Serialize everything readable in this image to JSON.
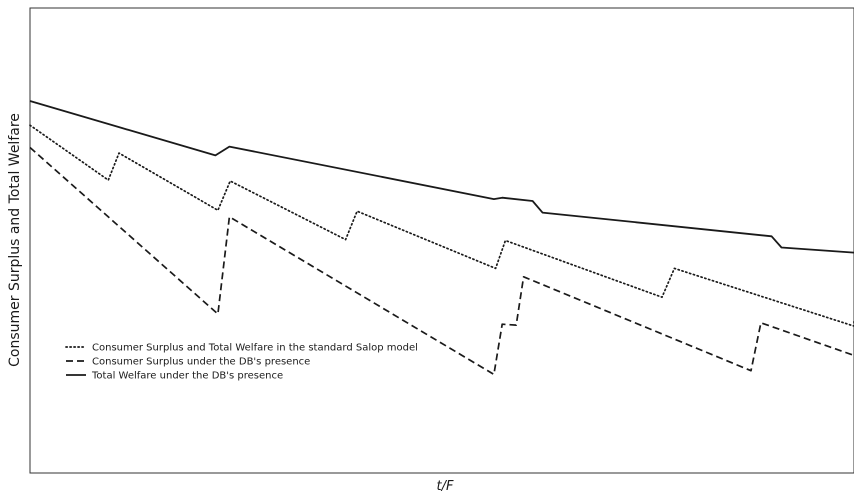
{
  "chart_data": {
    "type": "line",
    "xlabel": "t/F",
    "ylabel": "Consumer Surplus and Total Welfare",
    "xlim": [
      0,
      1
    ],
    "ylim": [
      0,
      1
    ],
    "ticks": "none",
    "grid": false,
    "legend_position": "lower-left",
    "series": [
      {
        "name": "Consumer Surplus and Total Welfare in the standard Salop model",
        "style": "dotted",
        "color": "#1a1a1a",
        "points": [
          [
            0.0,
            0.748
          ],
          [
            0.095,
            0.63
          ],
          [
            0.108,
            0.688
          ],
          [
            0.228,
            0.565
          ],
          [
            0.243,
            0.628
          ],
          [
            0.383,
            0.502
          ],
          [
            0.397,
            0.563
          ],
          [
            0.565,
            0.44
          ],
          [
            0.577,
            0.5
          ],
          [
            0.767,
            0.378
          ],
          [
            0.782,
            0.44
          ],
          [
            1.0,
            0.316
          ],
          [
            1.0,
            0.331
          ]
        ]
      },
      {
        "name": "Consumer Surplus under the DB's presence",
        "style": "dashed",
        "color": "#1a1a1a",
        "points": [
          [
            0.0,
            0.7
          ],
          [
            0.228,
            0.342
          ],
          [
            0.242,
            0.551
          ],
          [
            0.563,
            0.212
          ],
          [
            0.573,
            0.32
          ],
          [
            0.59,
            0.318
          ],
          [
            0.599,
            0.422
          ],
          [
            0.875,
            0.22
          ],
          [
            0.887,
            0.323
          ],
          [
            1.0,
            0.253
          ]
        ]
      },
      {
        "name": "Total Welfare under the DB's presence",
        "style": "solid",
        "color": "#1a1a1a",
        "points": [
          [
            0.0,
            0.8
          ],
          [
            0.225,
            0.683
          ],
          [
            0.242,
            0.702
          ],
          [
            0.563,
            0.589
          ],
          [
            0.573,
            0.592
          ],
          [
            0.61,
            0.585
          ],
          [
            0.622,
            0.56
          ],
          [
            0.9,
            0.509
          ],
          [
            0.912,
            0.485
          ],
          [
            1.0,
            0.474
          ]
        ]
      }
    ]
  }
}
